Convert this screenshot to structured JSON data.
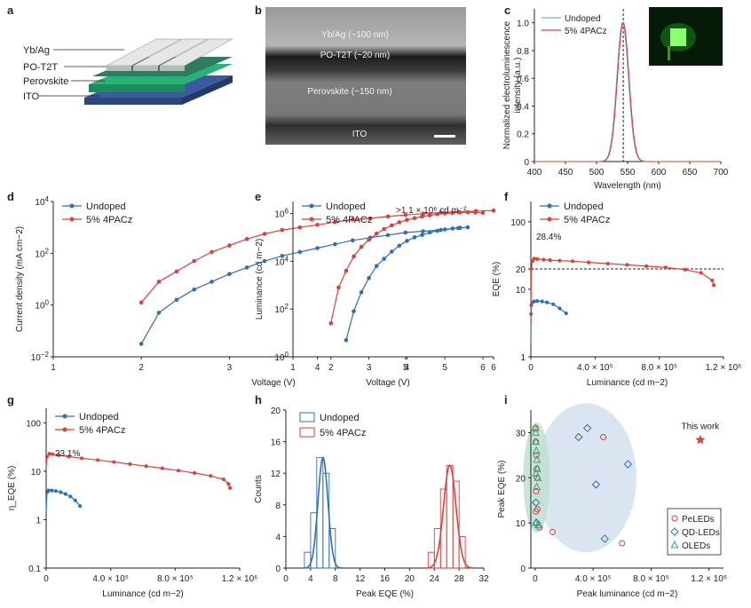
{
  "colors": {
    "undoped": "#2f6fb5",
    "doped": "#d9413c",
    "accent_green": "#3fa07a",
    "band": "#cfdcec"
  },
  "panel_letters": {
    "a": "a",
    "b": "b",
    "c": "c",
    "d": "d",
    "e": "e",
    "f": "f",
    "g": "g",
    "h": "h",
    "i": "i"
  },
  "panel_a": {
    "labels": [
      "Yb/Ag",
      "PO-T2T",
      "Perovskite",
      "ITO"
    ]
  },
  "panel_b": {
    "labels": [
      "Yb/Ag (~100 nm)",
      "PO-T2T (~20 nm)",
      "Perovskite (~150 nm)",
      "ITO"
    ]
  },
  "legend": {
    "undoped": "Undoped",
    "doped": "5% 4PACz"
  },
  "chart_data": [
    {
      "id": "c",
      "type": "line",
      "title": "",
      "xlabel": "Wavelength (nm)",
      "ylabel": "Normalized electroluminescence intensity (a.u.)",
      "xlim": [
        400,
        700
      ],
      "ylim": [
        0,
        1.1
      ],
      "xticks": [
        400,
        450,
        500,
        550,
        600,
        650,
        700
      ],
      "yticks": [
        0,
        0.2,
        0.4,
        0.6,
        0.8,
        1.0
      ],
      "ytick_labels": [
        "0",
        "0.2",
        "0.4",
        "0.6",
        "0.8",
        "1.0"
      ],
      "peak_marker_nm": 543,
      "series": [
        {
          "name": "Undoped",
          "peak_nm": 542,
          "fwhm_nm": 22
        },
        {
          "name": "5% 4PACz",
          "peak_nm": 543,
          "fwhm_nm": 22
        }
      ]
    },
    {
      "id": "d",
      "type": "line",
      "xscale": "log-y",
      "xlabel": "Voltage (V)",
      "ylabel": "Current density (mA cm−2)",
      "xlim": [
        1,
        6
      ],
      "ylim_log10": [
        -2,
        4
      ],
      "xticks": [
        1,
        2,
        3,
        4,
        5,
        6
      ],
      "ytick_exponents": [
        -2,
        0,
        2,
        4
      ],
      "series": [
        {
          "name": "Undoped",
          "x": [
            2.0,
            2.2,
            2.4,
            2.6,
            2.8,
            3.0,
            3.2,
            3.4,
            3.6,
            3.8,
            4.0,
            4.2,
            4.4,
            4.6,
            4.8,
            5.0,
            5.2,
            5.4,
            5.6
          ],
          "log10_y": [
            -1.5,
            -0.3,
            0.2,
            0.6,
            0.9,
            1.2,
            1.45,
            1.7,
            1.9,
            2.05,
            2.2,
            2.35,
            2.5,
            2.6,
            2.7,
            2.8,
            2.85,
            2.9,
            2.97
          ]
        },
        {
          "name": "5% 4PACz",
          "x": [
            2.0,
            2.2,
            2.4,
            2.6,
            2.8,
            3.0,
            3.2,
            3.4,
            3.6,
            3.8,
            4.0,
            4.2,
            4.4,
            4.6,
            4.8,
            5.0,
            5.2,
            5.4,
            5.6,
            5.8,
            6.0
          ],
          "log10_y": [
            0.1,
            0.9,
            1.3,
            1.7,
            2.05,
            2.3,
            2.55,
            2.75,
            2.9,
            3.0,
            3.1,
            3.2,
            3.3,
            3.35,
            3.42,
            3.48,
            3.53,
            3.57,
            3.6,
            3.63,
            3.65
          ]
        }
      ]
    },
    {
      "id": "e",
      "type": "line",
      "xlabel": "Voltage (V)",
      "ylabel": "Luminance (cd m−2)",
      "annotation": ">1.1 × 10⁶ cd m⁻²",
      "xlim": [
        1,
        6
      ],
      "ylim_log10": [
        0,
        6.5
      ],
      "xticks": [
        1,
        2,
        3,
        4,
        5,
        6
      ],
      "ytick_exponents": [
        0,
        2,
        4,
        6
      ],
      "series": [
        {
          "name": "Undoped",
          "x": [
            2.4,
            2.6,
            2.8,
            3.0,
            3.2,
            3.4,
            3.6,
            3.8,
            4.0,
            4.2,
            4.4,
            4.6,
            4.8,
            5.0,
            5.2,
            5.4,
            5.6
          ],
          "log10_y": [
            0.7,
            1.9,
            2.7,
            3.3,
            3.8,
            4.1,
            4.4,
            4.65,
            4.85,
            5.0,
            5.1,
            5.2,
            5.27,
            5.33,
            5.37,
            5.4,
            5.42
          ]
        },
        {
          "name": "5% 4PACz",
          "x": [
            2.0,
            2.2,
            2.4,
            2.6,
            2.8,
            3.0,
            3.2,
            3.4,
            3.6,
            3.8,
            4.0,
            4.2,
            4.4,
            4.6,
            4.8,
            5.0,
            5.2,
            5.4,
            5.6,
            5.8,
            6.0
          ],
          "log10_y": [
            1.4,
            2.9,
            3.6,
            4.2,
            4.6,
            4.9,
            5.15,
            5.35,
            5.5,
            5.63,
            5.73,
            5.8,
            5.87,
            5.92,
            5.97,
            6.0,
            6.02,
            6.04,
            6.05,
            6.04,
            6.02
          ]
        }
      ]
    },
    {
      "id": "f",
      "type": "line",
      "xlabel": "Luminance (cd m−2)",
      "ylabel": "EQE (%)",
      "annotation": "28.4%",
      "ref_line": 20,
      "xlim": [
        0,
        1200000
      ],
      "ylim_log10": [
        0,
        2.3
      ],
      "xtick_labels": [
        "0",
        "4.0 × 10⁵",
        "8.0 × 10⁵",
        "1.2 × 10⁶"
      ],
      "xticks": [
        0,
        400000,
        800000,
        1200000
      ],
      "ytick_values": [
        1,
        10,
        20,
        100
      ],
      "ytick_labels": [
        "1",
        "10",
        "20",
        "100"
      ],
      "series": [
        {
          "name": "Undoped",
          "x": [
            0,
            1000,
            3000,
            8000,
            20000,
            40000,
            70000,
            100000,
            140000,
            180000,
            220000
          ],
          "y": [
            1.5,
            4.3,
            5.8,
            6.4,
            6.6,
            6.7,
            6.6,
            6.4,
            6.0,
            5.2,
            4.4
          ]
        },
        {
          "name": "5% 4PACz",
          "x": [
            0,
            3000,
            10000,
            20000,
            40000,
            80000,
            120000,
            180000,
            260000,
            360000,
            480000,
            600000,
            720000,
            840000,
            960000,
            1060000,
            1130000,
            1140000
          ],
          "y": [
            3,
            20,
            26,
            28.4,
            28,
            27.5,
            27,
            26.5,
            26,
            25,
            24,
            23,
            22,
            21,
            19.5,
            17.5,
            13.5,
            11.5
          ]
        }
      ]
    },
    {
      "id": "g",
      "type": "line",
      "xlabel": "Luminance (cd m−2)",
      "ylabel": "η_EQE (%)",
      "annotation": "23.1%",
      "xlim": [
        0,
        1200000
      ],
      "ylim_log10": [
        -1,
        2.3
      ],
      "xtick_labels": [
        "0",
        "4.0 × 10⁵",
        "8.0 × 10⁵",
        "1.2 × 10⁶"
      ],
      "xticks": [
        0,
        400000,
        800000,
        1200000
      ],
      "ytick_values": [
        0.1,
        1,
        10,
        100
      ],
      "ytick_labels": [
        "0.1",
        "1",
        "10",
        "100"
      ],
      "series": [
        {
          "name": "Undoped",
          "x": [
            0,
            5000,
            15000,
            35000,
            60000,
            90000,
            120000,
            150000,
            180000,
            210000
          ],
          "y": [
            1.5,
            3.7,
            4.0,
            4.0,
            3.9,
            3.7,
            3.4,
            3.0,
            2.5,
            1.9
          ]
        },
        {
          "name": "5% 4PACz",
          "x": [
            0,
            5000,
            20000,
            40000,
            80000,
            140000,
            220000,
            320000,
            420000,
            520000,
            620000,
            720000,
            820000,
            920000,
            1020000,
            1100000,
            1130000,
            1140000
          ],
          "y": [
            12,
            20,
            23.1,
            22.5,
            21.5,
            20,
            18.5,
            17,
            15.5,
            14,
            12.7,
            11.5,
            10.3,
            9.2,
            8,
            6.8,
            5.5,
            4.5
          ]
        }
      ]
    },
    {
      "id": "h",
      "type": "bar",
      "xlabel": "Peak EQE (%)",
      "ylabel": "Counts",
      "xlim": [
        0,
        32
      ],
      "ylim": [
        0,
        20
      ],
      "xticks": [
        0,
        4,
        8,
        12,
        16,
        20,
        24,
        28,
        32
      ],
      "yticks": [
        0,
        4,
        8,
        12,
        16,
        20
      ],
      "bin_width": 1,
      "series": [
        {
          "name": "Undoped",
          "bins": [
            3,
            4,
            5,
            6,
            7
          ],
          "counts": [
            2,
            7,
            14,
            12,
            5
          ],
          "fit_mean": 5.5,
          "fit_sigma": 0.8,
          "fit_peak": 14
        },
        {
          "name": "5% 4PACz",
          "bins": [
            23,
            24,
            25,
            26,
            27,
            28
          ],
          "counts": [
            2,
            5,
            10,
            13,
            11,
            4
          ],
          "fit_mean": 26,
          "fit_sigma": 1.0,
          "fit_peak": 13
        }
      ]
    },
    {
      "id": "i",
      "type": "scatter",
      "xlabel": "Peak luminance (cd m−2)",
      "ylabel": "Peak EQE (%)",
      "xlim": [
        -30000,
        1300000
      ],
      "ylim": [
        0,
        35
      ],
      "xticks": [
        0,
        400000,
        800000,
        1200000
      ],
      "xtick_labels": [
        "0",
        "4.0 × 10⁵",
        "8.0 × 10⁵",
        "1.2 × 10⁶"
      ],
      "yticks": [
        0,
        10,
        20,
        30
      ],
      "this_work": {
        "label": "This work",
        "x": 1140000,
        "y": 28.4
      },
      "series": [
        {
          "name": "PeLEDs",
          "marker": "circle",
          "x": [
            3000,
            5000,
            8000,
            10000,
            12000,
            7000,
            15000,
            30000,
            120000,
            470000,
            600000,
            5000
          ],
          "y": [
            31,
            28,
            25,
            22,
            20,
            17,
            13,
            9,
            8,
            29,
            5.5,
            12.5
          ]
        },
        {
          "name": "QD-LEDs",
          "marker": "diamond",
          "x": [
            5000,
            300000,
            360000,
            420000,
            480000,
            640000,
            10000
          ],
          "y": [
            14.5,
            29,
            31,
            18.5,
            6.5,
            23,
            10
          ]
        },
        {
          "name": "OLEDs",
          "marker": "triangle",
          "x": [
            1000,
            3000,
            5000,
            8000,
            12000,
            15000,
            20000,
            5000,
            10000,
            3000,
            20000
          ],
          "y": [
            31,
            30,
            28,
            26,
            24,
            22,
            20,
            21,
            18,
            10,
            9.5
          ]
        }
      ]
    }
  ]
}
